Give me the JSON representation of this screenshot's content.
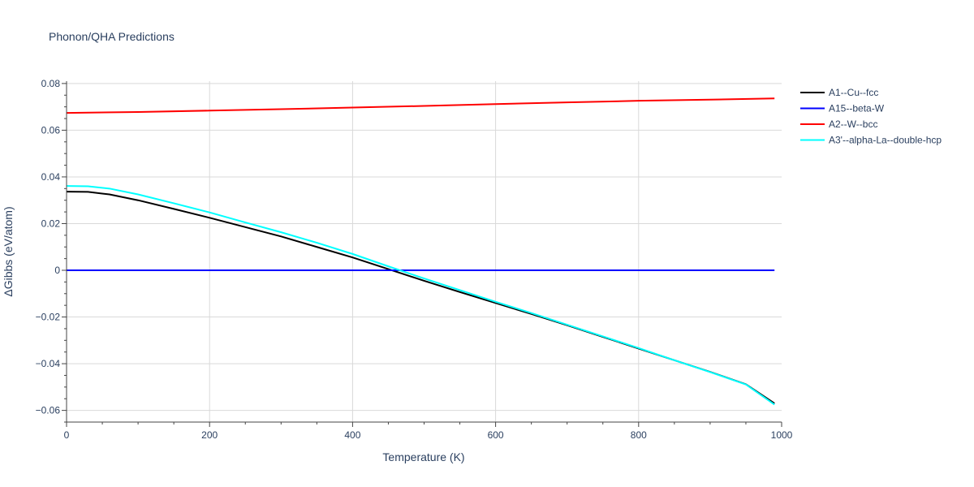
{
  "chart_data": {
    "type": "line",
    "title": "Phonon/QHA Predictions",
    "xlabel": "Temperature (K)",
    "ylabel": "ΔGibbs (eV/atom)",
    "xlim": [
      0,
      1000
    ],
    "ylim": [
      -0.065,
      0.081
    ],
    "x_ticks": [
      0,
      200,
      400,
      600,
      800,
      1000
    ],
    "x_tick_labels": [
      "0",
      "200",
      "400",
      "600",
      "800",
      "1000"
    ],
    "y_ticks": [
      -0.06,
      -0.04,
      -0.02,
      0,
      0.02,
      0.04,
      0.06,
      0.08
    ],
    "y_tick_labels": [
      "−0.06",
      "−0.04",
      "−0.02",
      "0",
      "0.02",
      "0.04",
      "0.06",
      "0.08"
    ],
    "grid": true,
    "legend_position": "top-right",
    "series": [
      {
        "name": "A1--Cu--fcc",
        "color": "#000000",
        "x": [
          0,
          30,
          60,
          100,
          150,
          200,
          250,
          300,
          350,
          400,
          450,
          500,
          550,
          600,
          650,
          700,
          750,
          800,
          850,
          900,
          950,
          990
        ],
        "y": [
          0.0337,
          0.0336,
          0.0325,
          0.03,
          0.0263,
          0.0225,
          0.0185,
          0.0145,
          0.01,
          0.0055,
          0.0005,
          -0.0045,
          -0.0093,
          -0.014,
          -0.0187,
          -0.0235,
          -0.0285,
          -0.0335,
          -0.0385,
          -0.0435,
          -0.0488,
          -0.057
        ]
      },
      {
        "name": "A15--beta-W",
        "color": "#0000ff",
        "x": [
          0,
          990
        ],
        "y": [
          0,
          0
        ]
      },
      {
        "name": "A2--W--bcc",
        "color": "#ff0000",
        "x": [
          0,
          100,
          200,
          300,
          400,
          500,
          600,
          700,
          800,
          900,
          990
        ],
        "y": [
          0.0674,
          0.0678,
          0.0684,
          0.069,
          0.0697,
          0.0704,
          0.0712,
          0.0719,
          0.0726,
          0.0731,
          0.0736
        ]
      },
      {
        "name": "A3'--alpha-La--double-hcp",
        "color": "#00ffff",
        "x": [
          0,
          30,
          60,
          100,
          150,
          200,
          250,
          300,
          350,
          400,
          450,
          500,
          550,
          600,
          650,
          700,
          750,
          800,
          850,
          900,
          950,
          990
        ],
        "y": [
          0.0361,
          0.036,
          0.035,
          0.0325,
          0.0287,
          0.0248,
          0.0205,
          0.0163,
          0.0118,
          0.007,
          0.0017,
          -0.0035,
          -0.0085,
          -0.0135,
          -0.0183,
          -0.0233,
          -0.0283,
          -0.0333,
          -0.0385,
          -0.0436,
          -0.0489,
          -0.0575
        ]
      }
    ]
  }
}
